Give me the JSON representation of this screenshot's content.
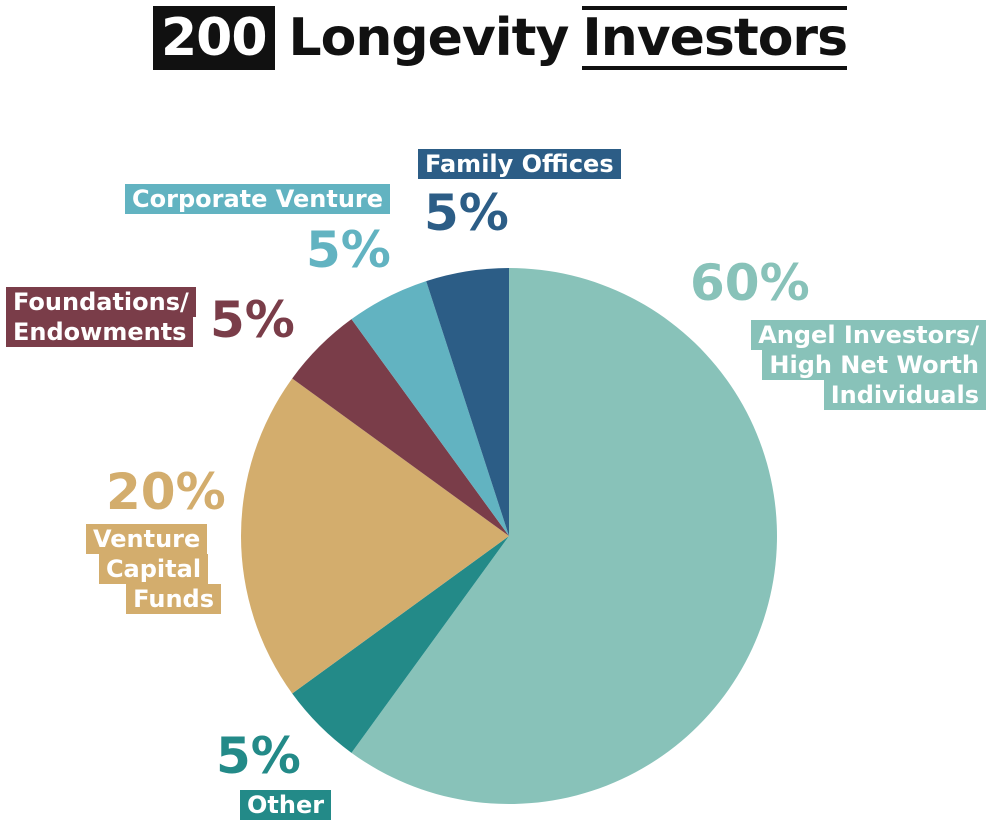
{
  "title": {
    "number": "200",
    "middle": "Longevity",
    "last": "Investors"
  },
  "chart_data": {
    "type": "pie",
    "slices": [
      {
        "label": "Angel Investors/ High Net Worth Individuals",
        "lines": [
          "Angel Investors/",
          "High Net Worth",
          "Individuals"
        ],
        "value": 60,
        "pct_label": "60%",
        "color": "#88c2b9",
        "label_color": "#88c2b9"
      },
      {
        "label": "Other",
        "lines": [
          "Other"
        ],
        "value": 5,
        "pct_label": "5%",
        "color": "#238a88",
        "label_color": "#238a88"
      },
      {
        "label": "Venture Capital Funds",
        "lines": [
          "Venture",
          "Capital",
          "Funds"
        ],
        "value": 20,
        "pct_label": "20%",
        "color": "#d3ad6d",
        "label_color": "#d3ad6d"
      },
      {
        "label": "Foundations/ Endowments",
        "lines": [
          "Foundations/",
          "Endowments"
        ],
        "value": 5,
        "pct_label": "5%",
        "color": "#7a3d49",
        "label_color": "#7a3d49"
      },
      {
        "label": "Corporate Venture",
        "lines": [
          "Corporate Venture"
        ],
        "value": 5,
        "pct_label": "5%",
        "color": "#62b3c1",
        "label_color": "#62b3c1"
      },
      {
        "label": "Family Offices",
        "lines": [
          "Family Offices"
        ],
        "value": 5,
        "pct_label": "5%",
        "color": "#2c5d86",
        "label_color": "#2c5d86"
      }
    ]
  }
}
